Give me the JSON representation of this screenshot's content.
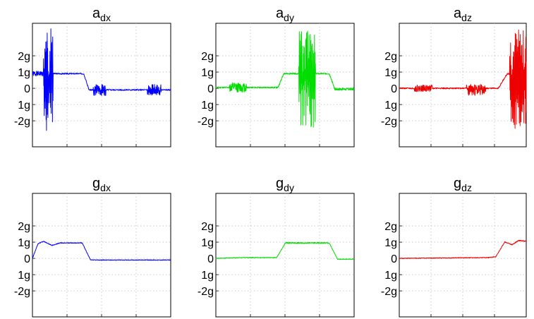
{
  "chart_data": [
    {
      "type": "line",
      "title": "a",
      "title_sub": "dx",
      "color": "#0000ff",
      "yticks": [
        {
          "value": 2,
          "label": "2g"
        },
        {
          "value": 1,
          "label": "1g"
        },
        {
          "value": 0,
          "label": "0"
        },
        {
          "value": -1,
          "label": "1g"
        },
        {
          "value": -2,
          "label": "-2g"
        }
      ],
      "ylim": [
        -3.6,
        4.0
      ],
      "xlim": [
        0,
        100
      ],
      "grid": true,
      "signal": {
        "segments": [
          {
            "x0": 0,
            "x1": 8,
            "level": 0.9,
            "level_end": 0.9,
            "noise": 0.15,
            "seed": 1
          },
          {
            "x0": 8,
            "x1": 15,
            "level": 0.6,
            "level_end": 0.6,
            "noise": 3.2,
            "seed": 2
          },
          {
            "x0": 15,
            "x1": 37,
            "level": 0.9,
            "level_end": 0.9,
            "noise": 0.04,
            "seed": 3
          },
          {
            "x0": 37,
            "x1": 41,
            "level": 0.9,
            "level_end": -0.1,
            "noise": 0.05,
            "seed": 4
          },
          {
            "x0": 41,
            "x1": 100,
            "level": -0.1,
            "level_end": -0.1,
            "noise": 0.04,
            "seed": 5
          },
          {
            "x0": 44,
            "x1": 53,
            "level": -0.1,
            "level_end": -0.1,
            "noise": 0.35,
            "seed": 6
          },
          {
            "x0": 83,
            "x1": 93,
            "level": -0.1,
            "level_end": -0.1,
            "noise": 0.35,
            "seed": 7
          }
        ]
      }
    },
    {
      "type": "line",
      "title": "a",
      "title_sub": "dy",
      "color": "#00dd00",
      "yticks": [
        {
          "value": 2,
          "label": "2g"
        },
        {
          "value": 1,
          "label": "1g"
        },
        {
          "value": 0,
          "label": "0"
        },
        {
          "value": -1,
          "label": "1g"
        },
        {
          "value": -2,
          "label": "-2g"
        }
      ],
      "ylim": [
        -3.6,
        4.0
      ],
      "xlim": [
        0,
        100
      ],
      "grid": true,
      "signal": {
        "segments": [
          {
            "x0": 0,
            "x1": 45,
            "level": 0.05,
            "level_end": 0.05,
            "noise": 0.04,
            "seed": 11
          },
          {
            "x0": 10,
            "x1": 22,
            "level": 0.05,
            "level_end": 0.05,
            "noise": 0.3,
            "seed": 12
          },
          {
            "x0": 45,
            "x1": 49,
            "level": 0.05,
            "level_end": 0.9,
            "noise": 0.05,
            "seed": 13
          },
          {
            "x0": 49,
            "x1": 100,
            "level": 0.9,
            "level_end": 0.9,
            "noise": 0.04,
            "seed": 14
          },
          {
            "x0": 60,
            "x1": 72,
            "level": 0.6,
            "level_end": 0.6,
            "noise": 3.0,
            "seed": 15
          },
          {
            "x0": 82,
            "x1": 86,
            "level": 0.9,
            "level_end": -0.05,
            "noise": 0.05,
            "seed": 16
          },
          {
            "x0": 86,
            "x1": 100,
            "level": -0.05,
            "level_end": -0.05,
            "noise": 0.08,
            "seed": 17
          }
        ]
      }
    },
    {
      "type": "line",
      "title": "a",
      "title_sub": "dz",
      "color": "#ee0000",
      "yticks": [
        {
          "value": 2,
          "label": "2g"
        },
        {
          "value": 1,
          "label": "1g"
        },
        {
          "value": 0,
          "label": "0"
        },
        {
          "value": -1,
          "label": "1g"
        },
        {
          "value": -2,
          "label": "-2g"
        }
      ],
      "ylim": [
        -3.6,
        4.0
      ],
      "xlim": [
        0,
        100
      ],
      "grid": true,
      "signal": {
        "segments": [
          {
            "x0": 0,
            "x1": 78,
            "level": 0.0,
            "level_end": 0.0,
            "noise": 0.04,
            "seed": 21
          },
          {
            "x0": 12,
            "x1": 26,
            "level": 0.0,
            "level_end": 0.0,
            "noise": 0.2,
            "seed": 22
          },
          {
            "x0": 53,
            "x1": 68,
            "level": -0.1,
            "level_end": -0.1,
            "noise": 0.35,
            "seed": 23
          },
          {
            "x0": 78,
            "x1": 85,
            "level": 0.0,
            "level_end": 0.9,
            "noise": 0.05,
            "seed": 24
          },
          {
            "x0": 85,
            "x1": 100,
            "level": 0.9,
            "level_end": 0.9,
            "noise": 0.05,
            "seed": 25
          },
          {
            "x0": 87,
            "x1": 100,
            "level": 0.6,
            "level_end": 0.6,
            "noise": 3.1,
            "seed": 26
          }
        ]
      }
    },
    {
      "type": "line",
      "title": "g",
      "title_sub": "dx",
      "color": "#0000ff",
      "yticks": [
        {
          "value": 2,
          "label": "2g"
        },
        {
          "value": 1,
          "label": "1g"
        },
        {
          "value": 0,
          "label": "0"
        },
        {
          "value": -1,
          "label": "1g"
        },
        {
          "value": -2,
          "label": "-2g"
        }
      ],
      "ylim": [
        -3.6,
        4.0
      ],
      "xlim": [
        0,
        100
      ],
      "grid": true,
      "signal": {
        "segments": [
          {
            "x0": 0,
            "x1": 4,
            "level": 0.0,
            "level_end": 0.9,
            "noise": 0.02,
            "seed": 31
          },
          {
            "x0": 4,
            "x1": 8,
            "level": 0.9,
            "level_end": 1.05,
            "noise": 0.02,
            "seed": 32
          },
          {
            "x0": 8,
            "x1": 14,
            "level": 1.05,
            "level_end": 0.8,
            "noise": 0.02,
            "seed": 33
          },
          {
            "x0": 14,
            "x1": 20,
            "level": 0.8,
            "level_end": 0.95,
            "noise": 0.02,
            "seed": 34
          },
          {
            "x0": 20,
            "x1": 36,
            "level": 0.95,
            "level_end": 0.95,
            "noise": 0.02,
            "seed": 35
          },
          {
            "x0": 36,
            "x1": 42,
            "level": 0.95,
            "level_end": -0.1,
            "noise": 0.02,
            "seed": 36
          },
          {
            "x0": 42,
            "x1": 100,
            "level": -0.1,
            "level_end": -0.1,
            "noise": 0.02,
            "seed": 37
          }
        ]
      }
    },
    {
      "type": "line",
      "title": "g",
      "title_sub": "dy",
      "color": "#00dd00",
      "yticks": [
        {
          "value": 2,
          "label": "2g"
        },
        {
          "value": 1,
          "label": "1g"
        },
        {
          "value": 0,
          "label": "0"
        },
        {
          "value": -1,
          "label": "1g"
        },
        {
          "value": -2,
          "label": "-2g"
        }
      ],
      "ylim": [
        -3.6,
        4.0
      ],
      "xlim": [
        0,
        100
      ],
      "grid": true,
      "signal": {
        "segments": [
          {
            "x0": 0,
            "x1": 20,
            "level": 0.0,
            "level_end": 0.05,
            "noise": 0.02,
            "seed": 41
          },
          {
            "x0": 20,
            "x1": 44,
            "level": 0.05,
            "level_end": 0.05,
            "noise": 0.02,
            "seed": 42
          },
          {
            "x0": 44,
            "x1": 50,
            "level": 0.05,
            "level_end": 0.9,
            "noise": 0.02,
            "seed": 43
          },
          {
            "x0": 50,
            "x1": 82,
            "level": 0.95,
            "level_end": 0.95,
            "noise": 0.04,
            "seed": 44
          },
          {
            "x0": 82,
            "x1": 88,
            "level": 0.95,
            "level_end": -0.05,
            "noise": 0.02,
            "seed": 45
          },
          {
            "x0": 88,
            "x1": 100,
            "level": -0.05,
            "level_end": -0.05,
            "noise": 0.02,
            "seed": 46
          }
        ]
      }
    },
    {
      "type": "line",
      "title": "g",
      "title_sub": "dz",
      "color": "#ee0000",
      "yticks": [
        {
          "value": 2,
          "label": "2g"
        },
        {
          "value": 1,
          "label": "1g"
        },
        {
          "value": 0,
          "label": "0"
        },
        {
          "value": -1,
          "label": "1g"
        },
        {
          "value": -2,
          "label": "-2g"
        }
      ],
      "ylim": [
        -3.6,
        4.0
      ],
      "xlim": [
        0,
        100
      ],
      "grid": true,
      "signal": {
        "segments": [
          {
            "x0": 0,
            "x1": 70,
            "level": 0.0,
            "level_end": 0.05,
            "noise": 0.02,
            "seed": 51
          },
          {
            "x0": 70,
            "x1": 76,
            "level": 0.05,
            "level_end": 0.1,
            "noise": 0.02,
            "seed": 52
          },
          {
            "x0": 76,
            "x1": 83,
            "level": 0.1,
            "level_end": 1.0,
            "noise": 0.02,
            "seed": 53
          },
          {
            "x0": 83,
            "x1": 89,
            "level": 1.0,
            "level_end": 0.85,
            "noise": 0.03,
            "seed": 54
          },
          {
            "x0": 89,
            "x1": 94,
            "level": 0.85,
            "level_end": 1.1,
            "noise": 0.03,
            "seed": 55
          },
          {
            "x0": 94,
            "x1": 100,
            "level": 1.1,
            "level_end": 1.05,
            "noise": 0.03,
            "seed": 56
          }
        ]
      }
    }
  ]
}
